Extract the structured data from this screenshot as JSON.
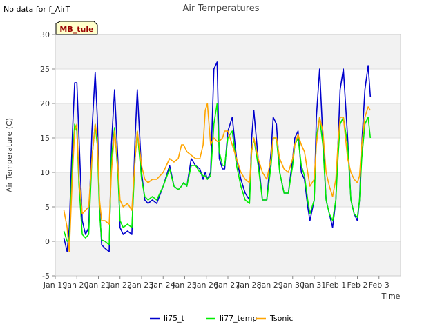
{
  "note": "No data for f_AirT",
  "chart_data": {
    "type": "line",
    "title": "Air Temperatures",
    "xlabel": "Time",
    "ylabel": "Air Temperature (C)",
    "ylim": [
      -5,
      30
    ],
    "xlim": [
      0,
      16
    ],
    "yticks": [
      -5,
      0,
      5,
      10,
      15,
      20,
      25,
      30
    ],
    "xticks": [
      {
        "x": 0,
        "label": "Jan 19"
      },
      {
        "x": 1,
        "label": "Jan 20"
      },
      {
        "x": 2,
        "label": "Jan 21"
      },
      {
        "x": 3,
        "label": "Jan 22"
      },
      {
        "x": 4,
        "label": "Jan 23"
      },
      {
        "x": 5,
        "label": "Jan 24"
      },
      {
        "x": 6,
        "label": "Jan 25"
      },
      {
        "x": 7,
        "label": "Jan 26"
      },
      {
        "x": 8,
        "label": "Jan 27"
      },
      {
        "x": 9,
        "label": "Jan 28"
      },
      {
        "x": 10,
        "label": "Jan 29"
      },
      {
        "x": 11,
        "label": "Jan 30"
      },
      {
        "x": 12,
        "label": "Jan 31"
      },
      {
        "x": 13,
        "label": "Feb 1"
      },
      {
        "x": 14,
        "label": "Feb 2"
      },
      {
        "x": 15,
        "label": "Feb 3"
      }
    ],
    "site_label": "MB_tule",
    "legend_position": "bottom-center",
    "series": [
      {
        "name": "li75_t",
        "color": "#0000cc",
        "x": [
          0.4,
          0.55,
          0.65,
          0.8,
          0.9,
          1.0,
          1.1,
          1.25,
          1.4,
          1.55,
          1.7,
          1.85,
          1.95,
          2.05,
          2.15,
          2.3,
          2.5,
          2.6,
          2.75,
          2.9,
          3.0,
          3.15,
          3.35,
          3.55,
          3.7,
          3.8,
          4.0,
          4.15,
          4.3,
          4.5,
          4.7,
          5.0,
          5.3,
          5.5,
          5.7,
          5.85,
          5.95,
          6.1,
          6.3,
          6.5,
          6.7,
          6.85,
          6.95,
          7.05,
          7.2,
          7.35,
          7.5,
          7.6,
          7.75,
          7.85,
          8.0,
          8.2,
          8.4,
          8.6,
          8.8,
          9.0,
          9.1,
          9.2,
          9.4,
          9.6,
          9.8,
          10.0,
          10.1,
          10.25,
          10.4,
          10.6,
          10.8,
          11.0,
          11.1,
          11.25,
          11.4,
          11.55,
          11.7,
          11.8,
          12.0,
          12.1,
          12.25,
          12.4,
          12.55,
          12.7,
          12.85,
          13.0,
          13.1,
          13.2,
          13.35,
          13.55,
          13.7,
          13.85,
          14.0,
          14.1,
          14.2,
          14.35,
          14.5,
          14.6
        ],
        "y": [
          0.5,
          -1.5,
          2,
          16,
          23,
          23,
          15,
          3,
          1,
          2,
          16,
          24.5,
          18,
          5,
          -0.5,
          -1,
          -1.5,
          14,
          22,
          12,
          2,
          1,
          1.5,
          1,
          15,
          22,
          10,
          6,
          5.5,
          6,
          5.5,
          8,
          11,
          8,
          7.5,
          8,
          8.5,
          8,
          12,
          11,
          10.5,
          9,
          10,
          9,
          10,
          25,
          26,
          12,
          10.5,
          10.5,
          16,
          18,
          12,
          9,
          7,
          6,
          15,
          19,
          12,
          6,
          6,
          13,
          18,
          17,
          10,
          7,
          7,
          12,
          15,
          16,
          10,
          9,
          5,
          3,
          6,
          18,
          25,
          15,
          6,
          4,
          2,
          6,
          14,
          22,
          25,
          15,
          6,
          4,
          3,
          6,
          14,
          22,
          25.5,
          21
        ]
      },
      {
        "name": "li77_temp",
        "color": "#00ee00",
        "x": [
          0.4,
          0.55,
          0.65,
          0.8,
          0.9,
          1.0,
          1.1,
          1.25,
          1.4,
          1.55,
          1.7,
          1.85,
          1.95,
          2.05,
          2.15,
          2.3,
          2.5,
          2.6,
          2.75,
          2.9,
          3.0,
          3.15,
          3.35,
          3.55,
          3.7,
          3.8,
          4.0,
          4.15,
          4.3,
          4.5,
          4.7,
          5.0,
          5.3,
          5.5,
          5.7,
          5.85,
          5.95,
          6.1,
          6.3,
          6.5,
          6.7,
          6.85,
          6.95,
          7.05,
          7.2,
          7.35,
          7.5,
          7.6,
          7.75,
          7.85,
          8.0,
          8.2,
          8.4,
          8.6,
          8.8,
          9.0,
          9.1,
          9.2,
          9.4,
          9.6,
          9.8,
          10.0,
          10.1,
          10.25,
          10.4,
          10.6,
          10.8,
          11.0,
          11.1,
          11.25,
          11.4,
          11.55,
          11.7,
          11.8,
          12.0,
          12.1,
          12.25,
          12.4,
          12.55,
          12.7,
          12.85,
          13.0,
          13.1,
          13.2,
          13.35,
          13.55,
          13.7,
          13.85,
          14.0,
          14.1,
          14.2,
          14.35,
          14.5,
          14.6
        ],
        "y": [
          1.5,
          0,
          0,
          12,
          17,
          16,
          8,
          1,
          0.5,
          1,
          12,
          17,
          14,
          4,
          0.2,
          0,
          -0.5,
          12,
          16.5,
          10,
          3,
          2,
          2.5,
          2,
          12,
          16,
          9,
          6.5,
          6,
          6.5,
          6,
          8,
          10.5,
          8,
          7.5,
          8,
          8.5,
          8,
          11,
          11,
          10,
          9.5,
          9.5,
          9,
          9.5,
          17,
          20,
          13,
          11,
          11,
          15,
          16,
          11,
          8,
          6,
          5.5,
          13,
          15,
          11,
          6,
          6,
          11,
          15,
          15,
          10,
          7,
          7,
          11,
          14,
          15,
          11,
          9.5,
          6,
          4,
          6,
          15,
          18,
          14,
          6,
          4,
          3,
          6,
          12,
          17,
          18,
          14,
          6,
          4,
          3.5,
          6,
          12,
          17,
          18,
          15
        ]
      },
      {
        "name": "Tsonic",
        "color": "#ffa500",
        "x": [
          0.4,
          0.55,
          0.65,
          0.8,
          0.9,
          1.0,
          1.1,
          1.25,
          1.4,
          1.55,
          1.7,
          1.85,
          1.95,
          2.05,
          2.15,
          2.3,
          2.5,
          2.6,
          2.75,
          2.9,
          3.0,
          3.15,
          3.35,
          3.55,
          3.7,
          3.8,
          4.0,
          4.15,
          4.3,
          4.5,
          4.7,
          5.0,
          5.3,
          5.5,
          5.7,
          5.85,
          5.95,
          6.1,
          6.3,
          6.5,
          6.7,
          6.85,
          6.95,
          7.05,
          7.2,
          7.35,
          7.5,
          7.6,
          7.75,
          7.85,
          8.0,
          8.2,
          8.4,
          8.6,
          8.8,
          9.0,
          9.1,
          9.2,
          9.4,
          9.6,
          9.8,
          10.0,
          10.1,
          10.25,
          10.4,
          10.6,
          10.8,
          11.0,
          11.1,
          11.25,
          11.4,
          11.55,
          11.7,
          11.8,
          12.0,
          12.1,
          12.25,
          12.4,
          12.55,
          12.7,
          12.85,
          13.0,
          13.1,
          13.2,
          13.35,
          13.55,
          13.7,
          13.85,
          14.0,
          14.1,
          14.2,
          14.35,
          14.5,
          14.6
        ],
        "y": [
          4.5,
          2,
          -1.5,
          10,
          16,
          17,
          9,
          4,
          4.5,
          5,
          12,
          17,
          15,
          6,
          3,
          3,
          2.5,
          10,
          16,
          11,
          6,
          5,
          5.5,
          4.5,
          12,
          16,
          11,
          9,
          8.5,
          9,
          9,
          10,
          12,
          11.5,
          12,
          14,
          14,
          13,
          12.5,
          12,
          12,
          14,
          19,
          20,
          14,
          15,
          14.5,
          14.5,
          15,
          16,
          16,
          14,
          12,
          10,
          9,
          8.5,
          13,
          15,
          12,
          10,
          9,
          12,
          15,
          15,
          12,
          10.5,
          10,
          12,
          14,
          15.5,
          14,
          13,
          10,
          8,
          9,
          14,
          18,
          16,
          10,
          8,
          6.5,
          9,
          14,
          18,
          18,
          12,
          10,
          9,
          8.5,
          9.5,
          14,
          18,
          19.5,
          19
        ]
      }
    ]
  }
}
